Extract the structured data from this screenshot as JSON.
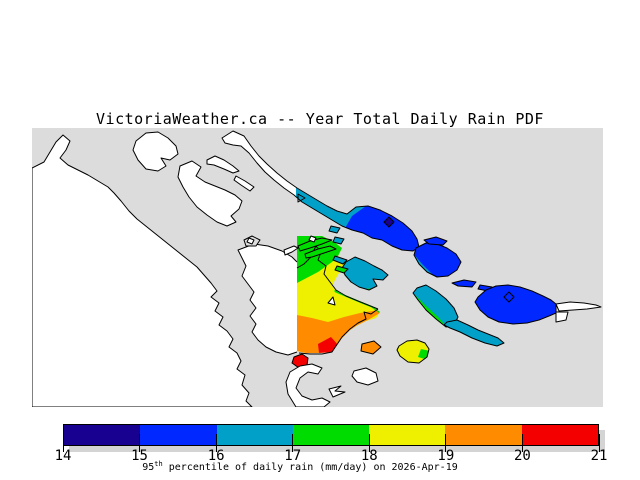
{
  "title": "VictoriaWeather.ca -- Year Total Daily Rain PDF",
  "palette": {
    "navy": "#180090",
    "blue": "#0028ff",
    "teal": "#00a0c8",
    "green": "#00dc00",
    "yellow": "#eef000",
    "orange": "#ff8c00",
    "red": "#f40000",
    "water": "#dcdcdc",
    "land": "#ffffff",
    "outline": "#000000",
    "shadow": "#d4d4d4"
  },
  "colorbar": {
    "ticks": [
      "14",
      "15",
      "16",
      "17",
      "18",
      "19",
      "20",
      "21"
    ],
    "segment_colors": [
      "navy",
      "blue",
      "teal",
      "green",
      "yellow",
      "orange",
      "red"
    ],
    "caption": {
      "prefix": "95",
      "superscript": "th",
      "rest": " percentile of daily rain (mm/day) on 2026-Apr-19"
    }
  },
  "map": {
    "markers": {
      "galiano_station": "diamond-filled-navy",
      "saturna_station": "diamond-outline",
      "saltspring_station": "triangle-outline",
      "galiano_west_station": "triangle-outline"
    },
    "value_colors": {
      "14-15": "navy",
      "15-16": "blue",
      "16-17": "teal",
      "17-18": "green",
      "18-19": "yellow",
      "19-20": "orange",
      "20-21": "red"
    }
  }
}
